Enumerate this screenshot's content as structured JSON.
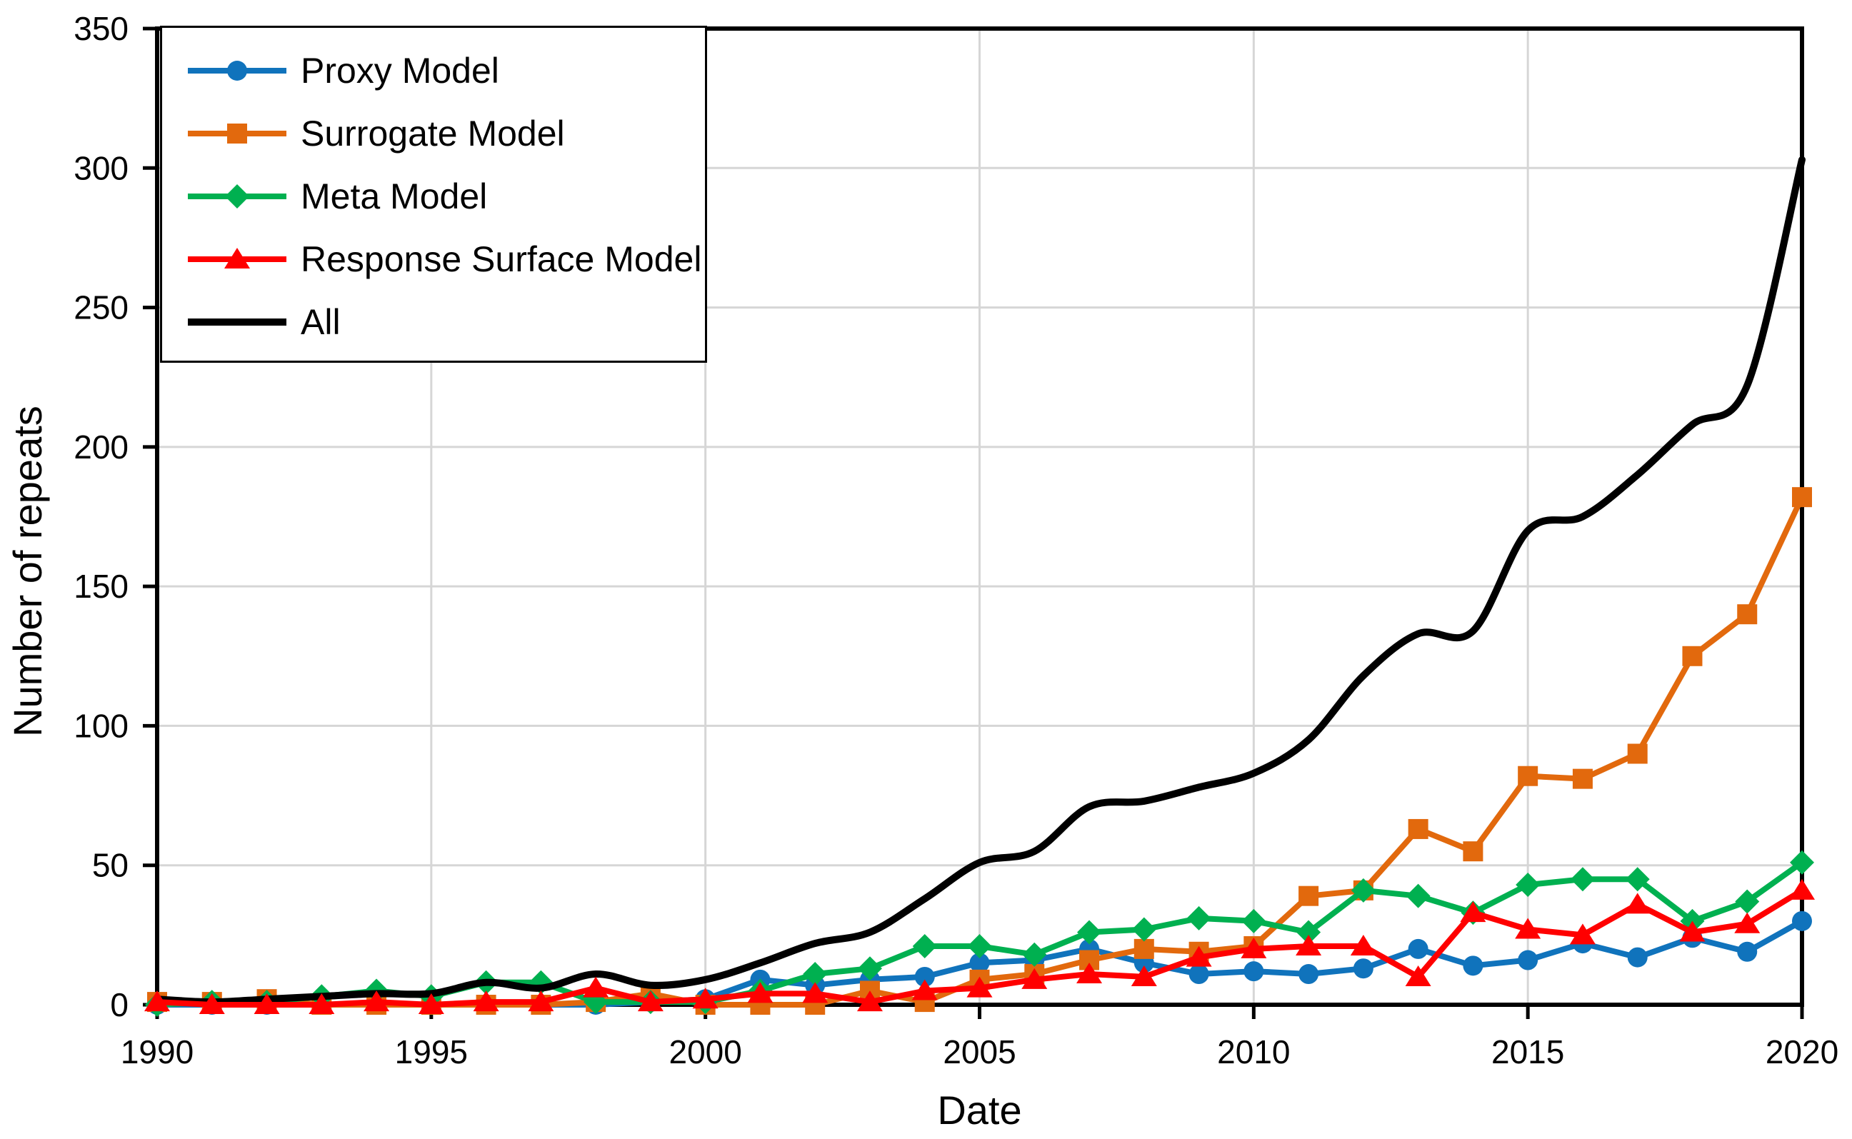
{
  "chart_data": {
    "type": "line",
    "title": "",
    "xlabel": "Date",
    "ylabel": "Number of repeats",
    "xlim": [
      1990,
      2020
    ],
    "ylim": [
      0,
      350
    ],
    "x_ticks": [
      1990,
      1995,
      2000,
      2005,
      2010,
      2015,
      2020
    ],
    "y_ticks": [
      0,
      50,
      100,
      150,
      200,
      250,
      300,
      350
    ],
    "grid": true,
    "legend_position": "top-left",
    "colors": {
      "grid": "#D6D6D6",
      "axis": "#000000",
      "background": "#FFFFFF"
    },
    "x": [
      1990,
      1991,
      1992,
      1993,
      1994,
      1995,
      1996,
      1997,
      1998,
      1999,
      2000,
      2001,
      2002,
      2003,
      2004,
      2005,
      2006,
      2007,
      2008,
      2009,
      2010,
      2011,
      2012,
      2013,
      2014,
      2015,
      2016,
      2017,
      2018,
      2019,
      2020
    ],
    "draw_order": [
      0,
      1,
      2,
      4,
      3
    ],
    "series": [
      {
        "name": "Proxy Model",
        "color": "#1073BC",
        "marker": "circle",
        "smooth": false,
        "width": 8,
        "values": [
          0,
          0,
          0,
          0,
          0,
          0,
          0,
          0,
          0,
          1,
          2,
          9,
          7,
          9,
          10,
          15,
          16,
          20,
          15,
          11,
          12,
          11,
          13,
          20,
          14,
          16,
          22,
          17,
          24,
          19,
          30
        ]
      },
      {
        "name": "Surrogate Model",
        "color": "#E2690D",
        "marker": "square",
        "smooth": false,
        "width": 8,
        "values": [
          1,
          1,
          2,
          0,
          0,
          0,
          0,
          0,
          1,
          4,
          0,
          0,
          0,
          5,
          1,
          9,
          11,
          16,
          20,
          19,
          21,
          39,
          41,
          63,
          55,
          82,
          81,
          90,
          125,
          140,
          182
        ]
      },
      {
        "name": "Meta Model",
        "color": "#00B050",
        "marker": "diamond",
        "smooth": false,
        "width": 8,
        "values": [
          0,
          1,
          1,
          3,
          5,
          3,
          8,
          8,
          1,
          1,
          1,
          5,
          11,
          13,
          21,
          21,
          18,
          26,
          27,
          31,
          30,
          26,
          41,
          39,
          33,
          43,
          45,
          45,
          30,
          37,
          51
        ]
      },
      {
        "name": "Response Surface Model",
        "color": "#FF0000",
        "marker": "triangle",
        "smooth": false,
        "width": 8,
        "values": [
          1,
          0,
          0,
          0,
          1,
          0,
          1,
          1,
          6,
          1,
          2,
          4,
          4,
          1,
          5,
          6,
          9,
          11,
          10,
          17,
          20,
          21,
          21,
          10,
          33,
          27,
          25,
          36,
          26,
          29,
          41
        ]
      },
      {
        "name": "All",
        "color": "#000000",
        "marker": "none",
        "smooth": true,
        "width": 10,
        "values": [
          2,
          1,
          2,
          3,
          4,
          4,
          8,
          6,
          11,
          7,
          9,
          15,
          22,
          26,
          38,
          51,
          55,
          71,
          73,
          78,
          83,
          95,
          118,
          133,
          134,
          170,
          175,
          190,
          208,
          222,
          303
        ]
      }
    ]
  }
}
